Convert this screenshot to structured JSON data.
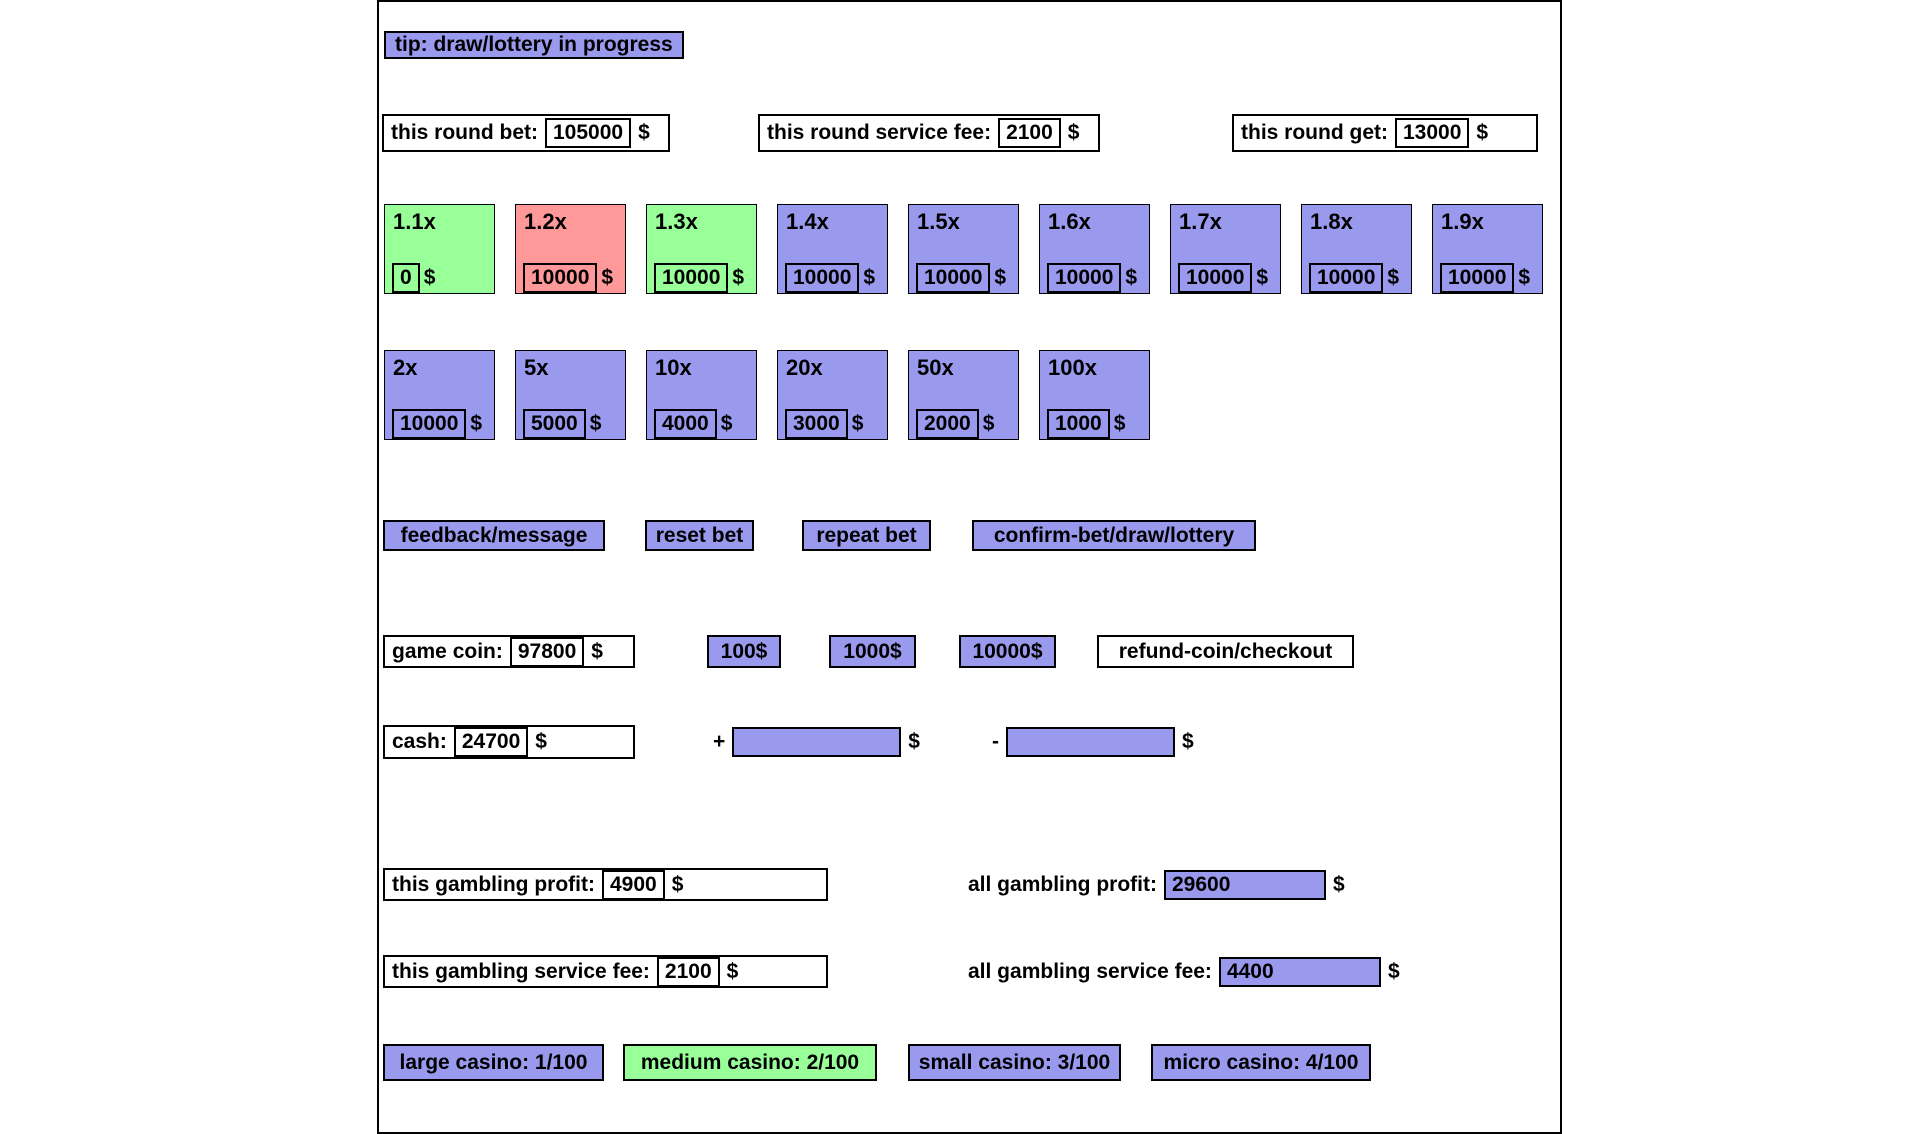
{
  "currency_symbol": "$",
  "colors": {
    "purple": "#9999ee",
    "green": "#99ff99",
    "red": "#ff9999"
  },
  "tip": {
    "label": "tip: draw/lottery in progress"
  },
  "round_info": [
    {
      "label": "this round bet:",
      "value": "105000",
      "currency": "$"
    },
    {
      "label": "this round service fee:",
      "value": "2100",
      "currency": "$"
    },
    {
      "label": "this round get:",
      "value": "13000",
      "currency": "$"
    }
  ],
  "multipliers_row1": [
    {
      "label": "1.1x",
      "value": "0",
      "color": "green"
    },
    {
      "label": "1.2x",
      "value": "10000",
      "color": "red"
    },
    {
      "label": "1.3x",
      "value": "10000",
      "color": "green"
    },
    {
      "label": "1.4x",
      "value": "10000",
      "color": "purple"
    },
    {
      "label": "1.5x",
      "value": "10000",
      "color": "purple"
    },
    {
      "label": "1.6x",
      "value": "10000",
      "color": "purple"
    },
    {
      "label": "1.7x",
      "value": "10000",
      "color": "purple"
    },
    {
      "label": "1.8x",
      "value": "10000",
      "color": "purple"
    },
    {
      "label": "1.9x",
      "value": "10000",
      "color": "purple"
    }
  ],
  "multipliers_row2": [
    {
      "label": "2x",
      "value": "10000",
      "color": "purple"
    },
    {
      "label": "5x",
      "value": "5000",
      "color": "purple"
    },
    {
      "label": "10x",
      "value": "4000",
      "color": "purple"
    },
    {
      "label": "20x",
      "value": "3000",
      "color": "purple"
    },
    {
      "label": "50x",
      "value": "2000",
      "color": "purple"
    },
    {
      "label": "100x",
      "value": "1000",
      "color": "purple"
    }
  ],
  "action_buttons": [
    {
      "label": "feedback/message"
    },
    {
      "label": "reset bet"
    },
    {
      "label": "repeat bet"
    },
    {
      "label": "confirm-bet/draw/lottery"
    }
  ],
  "wallet": {
    "game_coin_label": "game coin:",
    "game_coin_value": "97800",
    "add_coin_buttons": [
      {
        "label": "100$"
      },
      {
        "label": "1000$"
      },
      {
        "label": "10000$"
      }
    ],
    "refund_label": "refund-coin/checkout",
    "cash_label": "cash:",
    "cash_value": "24700",
    "plus_sign": "+",
    "minus_sign": "-",
    "cash_add_value": "",
    "cash_subtract_value": "",
    "currency": "$"
  },
  "stats": {
    "this_profit_label": "this gambling profit:",
    "this_profit_value": "4900",
    "all_profit_label": "all gambling profit:",
    "all_profit_value": "29600",
    "this_fee_label": "this gambling service fee:",
    "this_fee_value": "2100",
    "all_fee_label": "all gambling service fee:",
    "all_fee_value": "4400",
    "currency": "$"
  },
  "casinos": [
    {
      "label": "large casino: 1/100",
      "color": "purple"
    },
    {
      "label": "medium casino: 2/100",
      "color": "green"
    },
    {
      "label": "small casino: 3/100",
      "color": "purple"
    },
    {
      "label": "micro casino: 4/100",
      "color": "purple"
    }
  ]
}
